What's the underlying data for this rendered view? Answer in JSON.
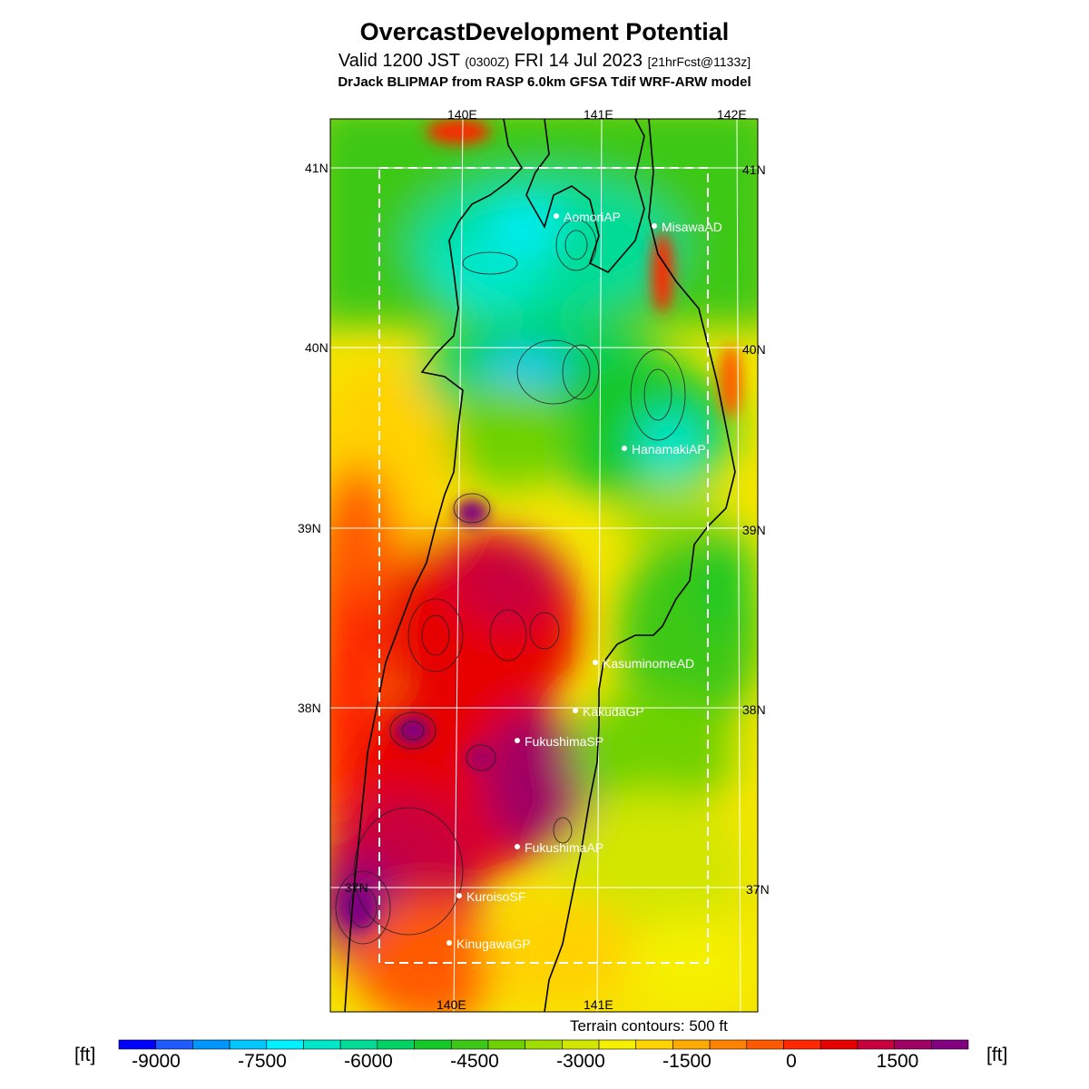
{
  "title": "OvercastDevelopment Potential",
  "subtitle": {
    "pre": "Valid 1200 JST ",
    "zulu": "(0300Z)",
    "mid": " FRI 14 Jul 2023 ",
    "fcst": "[21hrFcst@1133z]"
  },
  "model_line": "DrJack BLIPMAP from RASP 6.0km GFSA Tdif WRF-ARW model",
  "grid_labels": {
    "lon_top": [
      "140E",
      "141E",
      "142E"
    ],
    "lon_bottom": [
      "140E",
      "141E"
    ],
    "lat_left": [
      "41N",
      "40N",
      "39N",
      "38N",
      "37N"
    ],
    "lat_right": [
      "41N",
      "40N",
      "39N",
      "38N",
      "37N"
    ]
  },
  "stations": [
    {
      "name": "AomoriAP"
    },
    {
      "name": "MisawaAD"
    },
    {
      "name": "HanamakiAP"
    },
    {
      "name": "KasuminomeAD"
    },
    {
      "name": "KakudaGP"
    },
    {
      "name": "FukushimaSP"
    },
    {
      "name": "FukushimaAP"
    },
    {
      "name": "KuroisoSF"
    },
    {
      "name": "KinugawaGP"
    }
  ],
  "terrain_note": "Terrain contours: 500 ft",
  "colorbar": {
    "unit": "[ft]",
    "labels": [
      "-9000",
      "-7500",
      "-6000",
      "-4500",
      "-3000",
      "-1500",
      "0",
      "1500"
    ],
    "colors": [
      "#0000ff",
      "#1e5cff",
      "#0096ff",
      "#00c8ff",
      "#00f0ff",
      "#00e6c8",
      "#00dc96",
      "#00d264",
      "#14c828",
      "#3cc814",
      "#6ed200",
      "#a0dc00",
      "#d2e600",
      "#f5f000",
      "#ffd200",
      "#ffaa00",
      "#ff8200",
      "#ff5a00",
      "#ff2800",
      "#e60000",
      "#c8003c",
      "#a00064",
      "#800080"
    ]
  }
}
